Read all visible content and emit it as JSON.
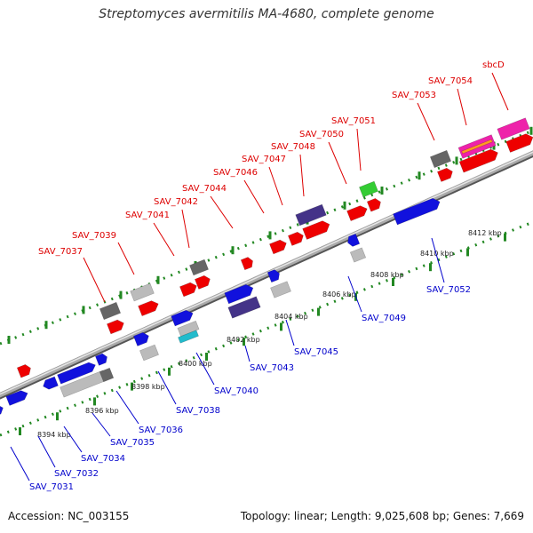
{
  "title": "Streptomyces avermitilis MA-4680, complete genome",
  "footer": {
    "accession": "Accession: NC_003155",
    "stats": "Topology: linear; Length: 9,025,608 bp; Genes: 7,669"
  },
  "colors": {
    "top_label": "#dd0000",
    "bottom_label": "#0000cc",
    "axis_ticks": "#228822",
    "backbone": "#999999",
    "gene_red": "#ee0000",
    "gene_blue": "#1111dd",
    "gene_grey": "#bbbbbb",
    "gene_darkgrey": "#666666",
    "gene_purple": "#443388",
    "gene_green": "#33cc33",
    "gene_magenta": "#ee22aa",
    "gene_cyan": "#22bbcc",
    "gene_orange": "#ff9922"
  },
  "coordinate_ticks": [
    "8394 kbp",
    "8396 kbp",
    "8398 kbp",
    "8400 kbp",
    "8402 kbp",
    "8404 kbp",
    "8406 kbp",
    "8408 kbp",
    "8410 kbp",
    "8412 kbp"
  ],
  "top_genes": [
    "SAV_7037",
    "SAV_7039",
    "SAV_7041",
    "SAV_7042",
    "SAV_7044",
    "SAV_7046",
    "SAV_7047",
    "SAV_7048",
    "SAV_7050",
    "SAV_7051",
    "SAV_7053",
    "SAV_7054",
    "sbcD"
  ],
  "bottom_genes": [
    "SAV_7031",
    "SAV_7032",
    "SAV_7034",
    "SAV_7035",
    "SAV_7036",
    "SAV_7038",
    "SAV_7040",
    "SAV_7043",
    "SAV_7045",
    "SAV_7049",
    "SAV_7052"
  ]
}
